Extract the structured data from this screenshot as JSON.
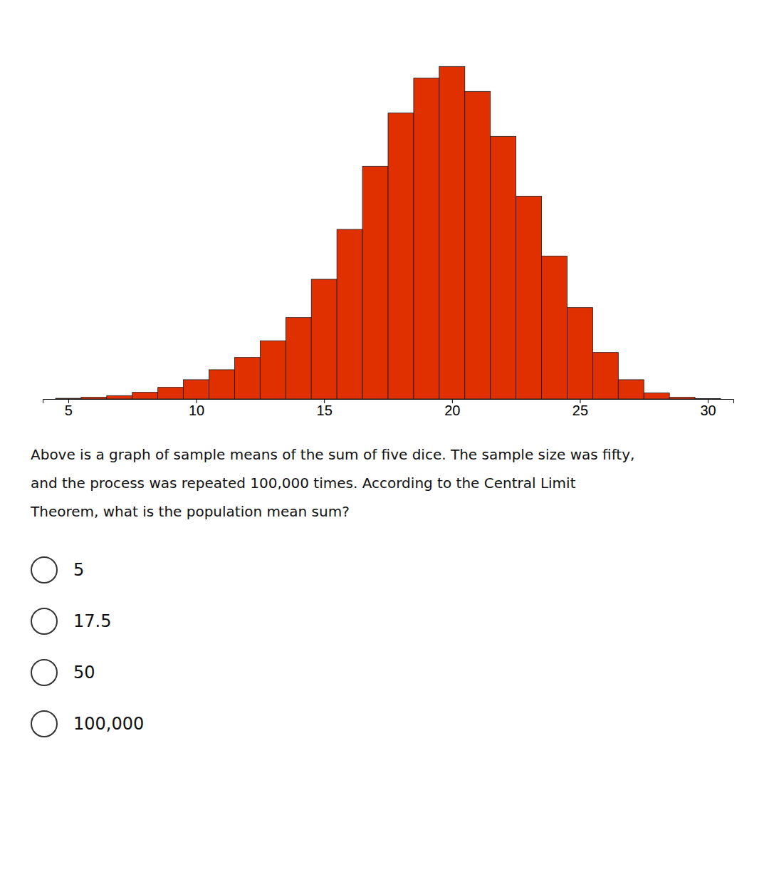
{
  "chart_data": {
    "type": "bar",
    "x": [
      5,
      6,
      7,
      8,
      9,
      10,
      11,
      12,
      13,
      14,
      15,
      16,
      17,
      18,
      19,
      20,
      21,
      22,
      23,
      24,
      25,
      26,
      27,
      28,
      29,
      30
    ],
    "values": [
      0.002,
      0.005,
      0.01,
      0.02,
      0.035,
      0.058,
      0.088,
      0.125,
      0.175,
      0.245,
      0.36,
      0.51,
      0.7,
      0.86,
      0.965,
      1.0,
      0.925,
      0.79,
      0.61,
      0.43,
      0.275,
      0.14,
      0.058,
      0.018,
      0.005,
      0.001
    ],
    "color": "#e03000",
    "xlim": [
      4.0,
      31.0
    ],
    "ylim": [
      0,
      1.05
    ],
    "xticks": [
      5,
      10,
      15,
      20,
      25,
      30
    ],
    "tick_labels": "x",
    "annotations": [
      "Above is a graph of sample means of the sum of five dice. The sample size was fifty,",
      "and the process was repeated 100,000 times. According to the Central Limit",
      "Theorem, what is the population mean sum?"
    ],
    "choices": [
      "5",
      "17.5",
      "50",
      "100,000"
    ]
  }
}
